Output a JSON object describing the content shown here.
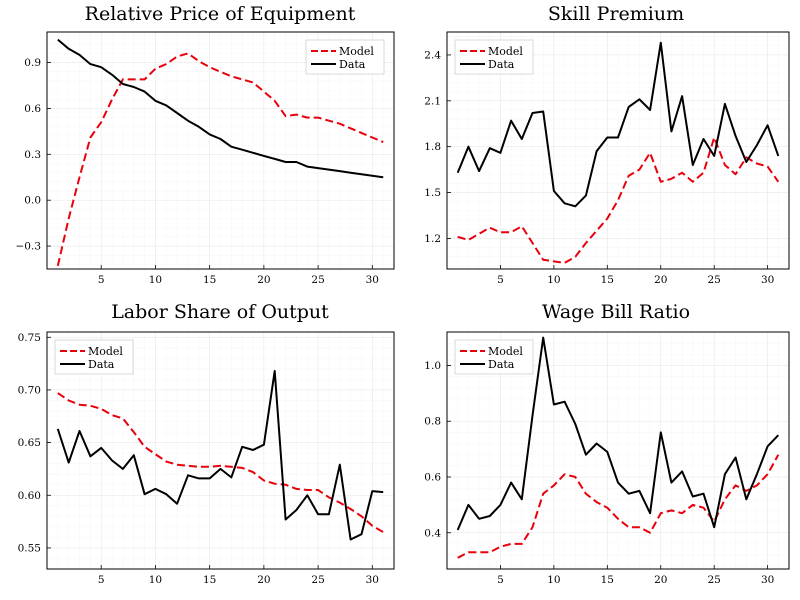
{
  "colors": {
    "model": "#e8000b",
    "data": "#000000",
    "frame": "#000000",
    "grid": "#e6e6e6"
  },
  "chart_data": [
    {
      "type": "line",
      "title": "Relative Price of Equipment",
      "xlabel": "",
      "ylabel": "",
      "xlim": [
        0,
        32
      ],
      "ylim": [
        -0.45,
        1.1
      ],
      "xticks": [
        5,
        10,
        15,
        20,
        25,
        30
      ],
      "yticks": [
        -0.3,
        0.0,
        0.3,
        0.6,
        0.9
      ],
      "ytick_labels": [
        "−0.3",
        "0.0",
        "0.3",
        "0.6",
        "0.9"
      ],
      "legend": "top-right",
      "grid": true,
      "x": [
        1,
        2,
        3,
        4,
        5,
        6,
        7,
        8,
        9,
        10,
        11,
        12,
        13,
        14,
        15,
        16,
        17,
        18,
        19,
        20,
        21,
        22,
        23,
        24,
        25,
        26,
        27,
        28,
        29,
        30,
        31
      ],
      "series": [
        {
          "name": "Model",
          "style": "dashed",
          "color": "#e8000b",
          "values": [
            -0.43,
            -0.12,
            0.15,
            0.41,
            0.51,
            0.66,
            0.79,
            0.79,
            0.79,
            0.86,
            0.89,
            0.94,
            0.96,
            0.91,
            0.87,
            0.84,
            0.81,
            0.79,
            0.77,
            0.71,
            0.65,
            0.55,
            0.56,
            0.54,
            0.54,
            0.52,
            0.5,
            0.47,
            0.44,
            0.41,
            0.38
          ]
        },
        {
          "name": "Data",
          "style": "solid",
          "color": "#000000",
          "values": [
            1.05,
            0.99,
            0.95,
            0.89,
            0.87,
            0.82,
            0.76,
            0.74,
            0.71,
            0.65,
            0.62,
            0.57,
            0.52,
            0.48,
            0.43,
            0.4,
            0.35,
            0.33,
            0.31,
            0.29,
            0.27,
            0.25,
            0.25,
            0.22,
            0.21,
            0.2,
            0.19,
            0.18,
            0.17,
            0.16,
            0.15
          ]
        }
      ]
    },
    {
      "type": "line",
      "title": "Skill Premium",
      "xlabel": "",
      "ylabel": "",
      "xlim": [
        0,
        32
      ],
      "ylim": [
        1.0,
        2.55
      ],
      "xticks": [
        5,
        10,
        15,
        20,
        25,
        30
      ],
      "yticks": [
        1.2,
        1.5,
        1.8,
        2.1,
        2.4
      ],
      "ytick_labels": [
        "1.2",
        "1.5",
        "1.8",
        "2.1",
        "2.4"
      ],
      "legend": "top-left",
      "grid": true,
      "x": [
        1,
        2,
        3,
        4,
        5,
        6,
        7,
        8,
        9,
        10,
        11,
        12,
        13,
        14,
        15,
        16,
        17,
        18,
        19,
        20,
        21,
        22,
        23,
        24,
        25,
        26,
        27,
        28,
        29,
        30,
        31
      ],
      "series": [
        {
          "name": "Model",
          "style": "dashed",
          "color": "#e8000b",
          "values": [
            1.21,
            1.19,
            1.23,
            1.27,
            1.24,
            1.24,
            1.28,
            1.17,
            1.06,
            1.05,
            1.04,
            1.08,
            1.17,
            1.25,
            1.33,
            1.45,
            1.61,
            1.65,
            1.76,
            1.57,
            1.59,
            1.63,
            1.57,
            1.63,
            1.86,
            1.68,
            1.62,
            1.73,
            1.69,
            1.67,
            1.57
          ]
        },
        {
          "name": "Data",
          "style": "solid",
          "color": "#000000",
          "values": [
            1.63,
            1.8,
            1.64,
            1.79,
            1.76,
            1.97,
            1.85,
            2.02,
            2.03,
            1.51,
            1.43,
            1.41,
            1.48,
            1.77,
            1.86,
            1.86,
            2.06,
            2.11,
            2.04,
            2.48,
            1.9,
            2.13,
            1.68,
            1.85,
            1.74,
            2.08,
            1.87,
            1.7,
            1.81,
            1.94,
            1.74
          ]
        }
      ]
    },
    {
      "type": "line",
      "title": "Labor Share of Output",
      "xlabel": "",
      "ylabel": "",
      "xlim": [
        0,
        32
      ],
      "ylim": [
        0.53,
        0.755
      ],
      "xticks": [
        5,
        10,
        15,
        20,
        25,
        30
      ],
      "yticks": [
        0.55,
        0.6,
        0.65,
        0.7,
        0.75
      ],
      "ytick_labels": [
        "0.55",
        "0.60",
        "0.65",
        "0.70",
        "0.75"
      ],
      "legend": "top-left",
      "grid": true,
      "x": [
        1,
        2,
        3,
        4,
        5,
        6,
        7,
        8,
        9,
        10,
        11,
        12,
        13,
        14,
        15,
        16,
        17,
        18,
        19,
        20,
        21,
        22,
        23,
        24,
        25,
        26,
        27,
        28,
        29,
        30,
        31
      ],
      "series": [
        {
          "name": "Model",
          "style": "dashed",
          "color": "#e8000b",
          "values": [
            0.697,
            0.69,
            0.686,
            0.685,
            0.682,
            0.676,
            0.673,
            0.66,
            0.646,
            0.639,
            0.632,
            0.629,
            0.628,
            0.627,
            0.627,
            0.628,
            0.627,
            0.626,
            0.622,
            0.614,
            0.611,
            0.61,
            0.606,
            0.605,
            0.605,
            0.598,
            0.593,
            0.587,
            0.58,
            0.571,
            0.565
          ]
        },
        {
          "name": "Data",
          "style": "solid",
          "color": "#000000",
          "values": [
            0.663,
            0.631,
            0.661,
            0.637,
            0.645,
            0.633,
            0.625,
            0.638,
            0.601,
            0.606,
            0.601,
            0.592,
            0.619,
            0.616,
            0.616,
            0.625,
            0.617,
            0.646,
            0.643,
            0.648,
            0.718,
            0.577,
            0.586,
            0.6,
            0.582,
            0.582,
            0.629,
            0.558,
            0.563,
            0.604,
            0.603
          ]
        }
      ]
    },
    {
      "type": "line",
      "title": "Wage Bill Ratio",
      "xlabel": "",
      "ylabel": "",
      "xlim": [
        0,
        32
      ],
      "ylim": [
        0.27,
        1.12
      ],
      "xticks": [
        5,
        10,
        15,
        20,
        25,
        30
      ],
      "yticks": [
        0.4,
        0.6,
        0.8,
        1.0
      ],
      "ytick_labels": [
        "0.4",
        "0.6",
        "0.8",
        "1.0"
      ],
      "legend": "top-left",
      "grid": true,
      "x": [
        1,
        2,
        3,
        4,
        5,
        6,
        7,
        8,
        9,
        10,
        11,
        12,
        13,
        14,
        15,
        16,
        17,
        18,
        19,
        20,
        21,
        22,
        23,
        24,
        25,
        26,
        27,
        28,
        29,
        30,
        31
      ],
      "series": [
        {
          "name": "Model",
          "style": "dashed",
          "color": "#e8000b",
          "values": [
            0.31,
            0.33,
            0.33,
            0.33,
            0.35,
            0.36,
            0.36,
            0.42,
            0.54,
            0.57,
            0.61,
            0.6,
            0.54,
            0.51,
            0.49,
            0.45,
            0.42,
            0.42,
            0.4,
            0.47,
            0.48,
            0.47,
            0.5,
            0.49,
            0.44,
            0.52,
            0.57,
            0.55,
            0.57,
            0.61,
            0.68
          ]
        },
        {
          "name": "Data",
          "style": "solid",
          "color": "#000000",
          "values": [
            0.41,
            0.5,
            0.45,
            0.46,
            0.5,
            0.58,
            0.52,
            0.82,
            1.1,
            0.86,
            0.87,
            0.79,
            0.68,
            0.72,
            0.69,
            0.58,
            0.54,
            0.55,
            0.47,
            0.76,
            0.58,
            0.62,
            0.53,
            0.54,
            0.42,
            0.61,
            0.67,
            0.52,
            0.61,
            0.71,
            0.75
          ]
        }
      ]
    }
  ]
}
